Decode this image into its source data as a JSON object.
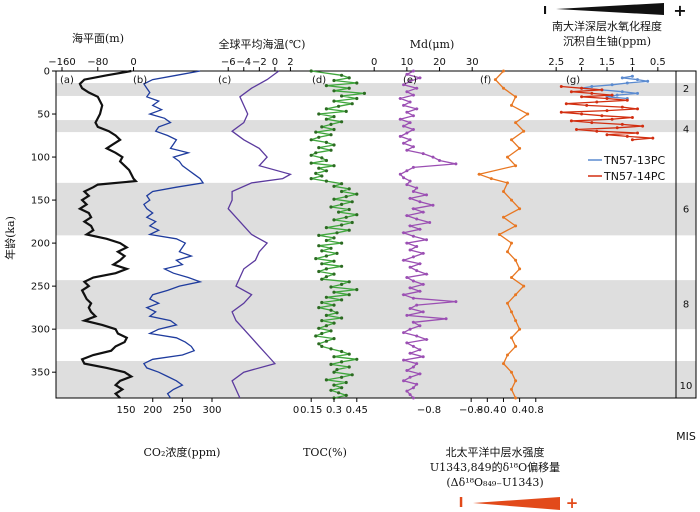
{
  "axes": {
    "age": {
      "label": "年龄(ka)",
      "ticks": [
        0,
        50,
        100,
        150,
        200,
        250,
        300,
        350
      ],
      "range": [
        0,
        380
      ]
    },
    "mis_label": "MIS",
    "mis_numbers": [
      {
        "n": "2",
        "age": 20
      },
      {
        "n": "4",
        "age": 67
      },
      {
        "n": "6",
        "age": 160
      },
      {
        "n": "8",
        "age": 270
      },
      {
        "n": "10",
        "age": 365
      }
    ],
    "glacial_bands": [
      [
        14,
        29
      ],
      [
        57,
        71
      ],
      [
        130,
        191
      ],
      [
        243,
        300
      ],
      [
        337,
        380
      ]
    ]
  },
  "top_labels": {
    "sea_level": "海平面(m)",
    "global_temp": "全球平均海温(℃)",
    "md": "Md(μm)",
    "oxygen_title": "南大洋深层水氧化程度",
    "oxygen_sub": "沉积自生铀(ppm)",
    "plus": "+",
    "minus": "I"
  },
  "bottom_labels": {
    "co2": "CO₂浓度(ppm)",
    "toc": "TOC(%)",
    "npiw_1": "北太平洋中层水强度",
    "npiw_2": "U1343,849的δ¹⁸O偏移量",
    "npiw_3": "(Δδ¹⁸O₈₄₉₋U1343)",
    "plus": "+",
    "minus": "I"
  },
  "legend": {
    "series1": "TN57-13PC",
    "series2": "TN57-14PC",
    "color1": "#5b8bd0",
    "color2": "#d22e10"
  },
  "chart_data": [
    {
      "id": "a",
      "type": "line",
      "panel_label": "(a)",
      "name": "Sea level",
      "unit": "m",
      "color": "#111111",
      "axis_position": "top",
      "xlim": [
        -160,
        10
      ],
      "ticks": [
        -160,
        -80,
        0
      ],
      "secondary_ticks": [
        150
      ],
      "secondary_axis_position": "bottom",
      "age": [
        0,
        5,
        10,
        15,
        20,
        25,
        30,
        40,
        50,
        55,
        60,
        65,
        70,
        75,
        80,
        85,
        90,
        95,
        100,
        105,
        110,
        115,
        120,
        125,
        128,
        132,
        135,
        140,
        145,
        150,
        155,
        160,
        165,
        170,
        175,
        180,
        185,
        190,
        195,
        200,
        205,
        210,
        215,
        220,
        225,
        230,
        235,
        240,
        245,
        250,
        255,
        260,
        265,
        270,
        275,
        280,
        285,
        290,
        295,
        300,
        305,
        310,
        315,
        320,
        325,
        330,
        335,
        340,
        345,
        350,
        355,
        360,
        365,
        370,
        375,
        380
      ],
      "values": [
        -5,
        -60,
        -110,
        -120,
        -115,
        -100,
        -80,
        -70,
        -75,
        -80,
        -85,
        -80,
        -55,
        -40,
        -30,
        -45,
        -60,
        -40,
        -25,
        -30,
        -20,
        -10,
        -5,
        0,
        5,
        -80,
        -90,
        -110,
        -100,
        -115,
        -105,
        -120,
        -100,
        -95,
        -110,
        -95,
        -90,
        -105,
        -60,
        -30,
        -15,
        -35,
        -20,
        -30,
        -45,
        -15,
        -40,
        -90,
        -110,
        -100,
        -115,
        -110,
        -105,
        -95,
        -100,
        -95,
        -85,
        -110,
        -70,
        -40,
        -35,
        -15,
        -20,
        -40,
        -50,
        -90,
        -115,
        -110,
        -60,
        -20,
        -5,
        -30,
        -40,
        -25,
        -40,
        -30
      ]
    },
    {
      "id": "b",
      "type": "line",
      "panel_label": "(b)",
      "name": "CO₂ concentration",
      "unit": "ppm",
      "color": "#1f3c9e",
      "axis_position": "bottom",
      "xlim": [
        165,
        300
      ],
      "ticks": [
        200,
        250,
        300
      ],
      "age": [
        0,
        5,
        10,
        15,
        20,
        25,
        30,
        35,
        40,
        45,
        50,
        55,
        60,
        65,
        70,
        75,
        80,
        85,
        90,
        95,
        100,
        105,
        110,
        115,
        120,
        125,
        130,
        135,
        140,
        145,
        150,
        155,
        160,
        165,
        170,
        175,
        180,
        185,
        190,
        195,
        200,
        205,
        210,
        215,
        220,
        225,
        230,
        235,
        240,
        245,
        250,
        255,
        260,
        265,
        270,
        275,
        280,
        285,
        290,
        295,
        300,
        305,
        310,
        315,
        320,
        325,
        330,
        335,
        340,
        345,
        350,
        355,
        360,
        365,
        370,
        375,
        380
      ],
      "values": [
        280,
        240,
        200,
        185,
        190,
        195,
        190,
        210,
        200,
        215,
        195,
        220,
        230,
        210,
        205,
        225,
        240,
        235,
        230,
        260,
        235,
        245,
        250,
        260,
        270,
        280,
        285,
        240,
        200,
        190,
        195,
        185,
        190,
        200,
        190,
        205,
        195,
        210,
        195,
        240,
        255,
        250,
        245,
        265,
        240,
        250,
        220,
        235,
        260,
        280,
        245,
        225,
        200,
        195,
        210,
        190,
        205,
        195,
        230,
        240,
        210,
        195,
        240,
        255,
        265,
        270,
        250,
        200,
        185,
        190,
        210,
        225,
        240,
        250,
        235,
        225,
        230
      ]
    },
    {
      "id": "c",
      "type": "line",
      "panel_label": "(c)",
      "name": "Global mean ocean temperature",
      "unit": "℃",
      "color": "#5b3a9e",
      "axis_position": "top",
      "xlim": [
        -6.8,
        4
      ],
      "ticks": [
        -6,
        -4,
        -2,
        0,
        2
      ],
      "secondary_ticks": [
        0
      ],
      "secondary_axis_position": "bottom",
      "age": [
        0,
        10,
        20,
        30,
        40,
        50,
        60,
        70,
        80,
        90,
        100,
        110,
        120,
        125,
        130,
        140,
        150,
        160,
        170,
        180,
        190,
        200,
        210,
        220,
        230,
        240,
        250,
        260,
        270,
        280,
        290,
        300,
        310,
        320,
        330,
        340,
        350,
        360,
        370,
        380
      ],
      "values": [
        0.5,
        -1,
        -3,
        -4.5,
        -4,
        -3.5,
        -4,
        -5.5,
        -4,
        -2,
        -1,
        -2,
        2,
        1,
        -3,
        -5.5,
        -5.5,
        -6,
        -5,
        -4,
        -3,
        -1,
        -2,
        -2.5,
        -4,
        -4.5,
        -5,
        -3,
        -4,
        -5.5,
        -5,
        -4,
        -3,
        -2,
        -1,
        0,
        -4,
        -5.5,
        -5,
        -4.5
      ]
    },
    {
      "id": "d",
      "type": "line",
      "panel_label": "(d)",
      "name": "TOC",
      "unit": "%",
      "color": "#3fa63c",
      "axis_position": "bottom",
      "xlim": [
        0.05,
        0.55
      ],
      "ticks": [
        0.15,
        0.3,
        0.45
      ],
      "age": [
        0,
        5,
        8,
        11,
        14,
        17,
        20,
        23,
        26,
        29,
        32,
        35,
        38,
        41,
        44,
        47,
        50,
        53,
        56,
        59,
        62,
        65,
        68,
        71,
        74,
        77,
        80,
        83,
        86,
        89,
        92,
        95,
        98,
        101,
        104,
        107,
        110,
        113,
        116,
        119,
        122,
        125,
        128,
        131,
        134,
        137,
        140,
        143,
        146,
        149,
        152,
        155,
        158,
        161,
        164,
        167,
        170,
        173,
        176,
        179,
        182,
        185,
        188,
        191,
        194,
        197,
        200,
        203,
        206,
        209,
        212,
        215,
        218,
        221,
        224,
        227,
        230,
        233,
        236,
        239,
        242,
        245,
        248,
        251,
        254,
        257,
        260,
        263,
        266,
        269,
        272,
        275,
        278,
        281,
        284,
        287,
        290,
        293,
        296,
        299,
        302,
        305,
        308,
        311,
        314,
        317,
        320,
        323,
        326,
        329,
        332,
        335,
        338,
        341,
        344,
        347,
        350,
        353,
        356,
        359,
        362,
        365,
        368,
        371,
        374,
        377,
        380
      ],
      "values": [
        0.15,
        0.35,
        0.4,
        0.3,
        0.45,
        0.25,
        0.4,
        0.3,
        0.5,
        0.35,
        0.45,
        0.3,
        0.42,
        0.33,
        0.25,
        0.38,
        0.2,
        0.3,
        0.25,
        0.35,
        0.28,
        0.22,
        0.3,
        0.18,
        0.28,
        0.2,
        0.15,
        0.25,
        0.3,
        0.2,
        0.28,
        0.18,
        0.15,
        0.22,
        0.25,
        0.15,
        0.3,
        0.2,
        0.25,
        0.18,
        0.22,
        0.15,
        0.25,
        0.35,
        0.3,
        0.4,
        0.35,
        0.45,
        0.38,
        0.3,
        0.42,
        0.35,
        0.28,
        0.4,
        0.33,
        0.45,
        0.38,
        0.3,
        0.42,
        0.35,
        0.25,
        0.4,
        0.32,
        0.2,
        0.3,
        0.25,
        0.35,
        0.2,
        0.28,
        0.22,
        0.32,
        0.25,
        0.18,
        0.3,
        0.22,
        0.35,
        0.25,
        0.2,
        0.3,
        0.25,
        0.22,
        0.4,
        0.35,
        0.28,
        0.45,
        0.3,
        0.4,
        0.25,
        0.35,
        0.22,
        0.3,
        0.2,
        0.28,
        0.32,
        0.25,
        0.35,
        0.22,
        0.3,
        0.25,
        0.2,
        0.28,
        0.22,
        0.18,
        0.3,
        0.25,
        0.2,
        0.22,
        0.28,
        0.35,
        0.4,
        0.3,
        0.45,
        0.35,
        0.28,
        0.4,
        0.32,
        0.3,
        0.42,
        0.35,
        0.25,
        0.38,
        0.3,
        0.35,
        0.28,
        0.33,
        0.38,
        0.3
      ]
    },
    {
      "id": "e",
      "type": "line",
      "panel_label": "(e)",
      "name": "Md",
      "unit": "μm",
      "color": "#9b4fb3",
      "axis_position": "top",
      "xlim": [
        3,
        33
      ],
      "ticks": [
        0,
        10,
        20,
        30
      ],
      "secondary_ticks": [
        -0.8
      ],
      "secondary_axis_position": "bottom",
      "age": [
        0,
        4,
        8,
        12,
        16,
        20,
        24,
        28,
        32,
        36,
        40,
        44,
        48,
        52,
        56,
        60,
        64,
        68,
        72,
        76,
        80,
        84,
        88,
        92,
        96,
        100,
        104,
        108,
        112,
        116,
        120,
        124,
        128,
        132,
        136,
        140,
        144,
        148,
        152,
        156,
        160,
        164,
        168,
        172,
        176,
        180,
        184,
        188,
        192,
        196,
        200,
        204,
        208,
        212,
        216,
        220,
        224,
        228,
        232,
        236,
        240,
        244,
        248,
        252,
        256,
        260,
        264,
        268,
        272,
        276,
        280,
        284,
        288,
        292,
        296,
        300,
        304,
        308,
        312,
        316,
        320,
        324,
        328,
        332,
        336,
        340,
        344,
        348,
        352,
        356,
        360,
        364,
        368,
        372,
        376,
        380
      ],
      "values": [
        12,
        10,
        14,
        11,
        9,
        13,
        10,
        12,
        8,
        11,
        9,
        13,
        10,
        12,
        8,
        11,
        9,
        12,
        10,
        8,
        11,
        9,
        12,
        10,
        15,
        18,
        20,
        25,
        12,
        10,
        8,
        9,
        11,
        10,
        13,
        12,
        16,
        11,
        14,
        18,
        12,
        15,
        10,
        13,
        17,
        11,
        14,
        9,
        12,
        16,
        10,
        13,
        11,
        15,
        12,
        9,
        14,
        11,
        13,
        16,
        10,
        12,
        15,
        11,
        14,
        9,
        12,
        25,
        13,
        11,
        15,
        10,
        22,
        12,
        14,
        11,
        9,
        13,
        16,
        10,
        12,
        14,
        11,
        15,
        9,
        13,
        12,
        10,
        14,
        11,
        9,
        13,
        12,
        10,
        11,
        12
      ]
    },
    {
      "id": "f",
      "type": "line",
      "panel_label": "(f)",
      "name": "Δδ18O 849–U1343",
      "unit": "‰",
      "color": "#e87722",
      "axis_position": "bottom",
      "xlim": [
        -1.2,
        1.4
      ],
      "ticks": [
        -0.8,
        -0.4,
        0,
        0.4,
        0.8
      ],
      "age": [
        0,
        10,
        20,
        30,
        40,
        50,
        60,
        70,
        80,
        90,
        100,
        110,
        120,
        125,
        130,
        140,
        150,
        160,
        170,
        180,
        190,
        200,
        210,
        220,
        230,
        240,
        250,
        260,
        270,
        280,
        290,
        300,
        310,
        320,
        330,
        340,
        350,
        360,
        370,
        380
      ],
      "values": [
        0,
        -0.2,
        0,
        0.3,
        0.2,
        0.6,
        0.3,
        0.5,
        0.2,
        0.4,
        0.1,
        0.3,
        -0.6,
        -0.3,
        0.1,
        0,
        0.2,
        0.4,
        0,
        0.3,
        -0.1,
        0.2,
        0.1,
        0.3,
        0.4,
        0.2,
        0.5,
        0.3,
        0.1,
        0.2,
        0.3,
        0.4,
        0.2,
        0.3,
        0.1,
        0,
        0.2,
        0.3,
        0.2,
        0.3
      ]
    },
    {
      "id": "g",
      "type": "line",
      "panel_label": "(g)",
      "name": "Authigenic uranium",
      "unit": "ppm",
      "color": "#d22e10",
      "axis_position": "top",
      "xlim": [
        2.7,
        0.3
      ],
      "ticks": [
        2.5,
        2.0,
        1.5,
        1.0,
        0.5
      ],
      "series": [
        {
          "name": "TN57-13PC",
          "color": "#5b8bd0",
          "age": [
            6,
            8,
            10,
            12,
            14,
            16,
            18,
            20,
            22,
            24,
            26,
            28,
            30,
            32
          ],
          "values": [
            1.0,
            1.2,
            0.9,
            0.7,
            1.1,
            1.4,
            1.8,
            2.0,
            1.6,
            1.2,
            0.9,
            1.3,
            1.5,
            1.1
          ]
        },
        {
          "name": "TN57-14PC",
          "color": "#d22e10",
          "age": [
            18,
            20,
            22,
            24,
            26,
            28,
            30,
            32,
            34,
            36,
            38,
            40,
            42,
            44,
            46,
            48,
            50,
            52,
            54,
            56,
            58,
            60,
            62,
            64,
            66,
            68,
            70,
            72,
            74,
            76,
            78,
            80
          ],
          "values": [
            2.4,
            2.0,
            1.6,
            2.2,
            1.8,
            1.4,
            2.0,
            1.5,
            1.1,
            1.7,
            2.3,
            1.9,
            1.2,
            0.9,
            1.5,
            2.4,
            2.0,
            1.6,
            1.0,
            1.4,
            2.2,
            1.8,
            1.2,
            0.8,
            1.3,
            2.1,
            1.7,
            0.9,
            1.5,
            1.1,
            0.6,
            1.0
          ]
        }
      ]
    }
  ]
}
